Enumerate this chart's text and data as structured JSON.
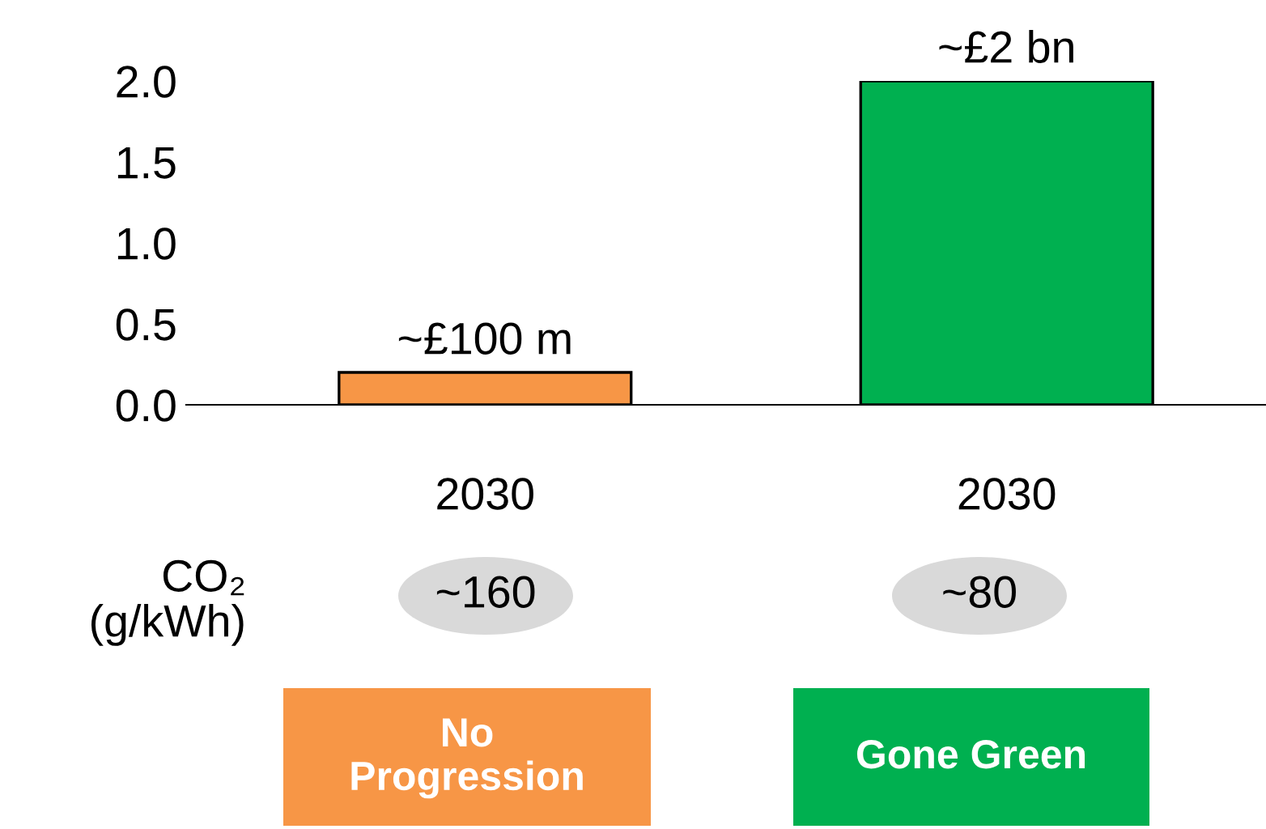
{
  "chart_data": {
    "type": "bar",
    "categories": [
      "2030",
      "2030"
    ],
    "values": [
      0.2,
      2.0
    ],
    "colors": [
      "#f79646",
      "#00b050"
    ],
    "ylim": [
      0,
      2.0
    ],
    "yticks": [
      {
        "value": 0,
        "label": "0.0"
      },
      {
        "value": 0.5,
        "label": "0.5"
      },
      {
        "value": 1.0,
        "label": "1.0"
      },
      {
        "value": 1.5,
        "label": "1.5"
      },
      {
        "value": 2.0,
        "label": "2.0"
      }
    ],
    "grid": false,
    "legend": false,
    "annotations": [
      "~£100 m",
      "~£2 bn",
      "CO₂\n(g/kWh)",
      "~160",
      "~80",
      "No\nProgression",
      "Gone Green"
    ]
  }
}
